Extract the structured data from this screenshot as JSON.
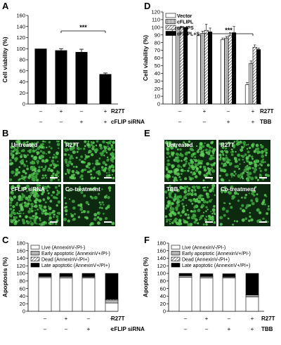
{
  "panels": {
    "A": "A",
    "B": "B",
    "C": "C",
    "D": "D",
    "E": "E",
    "F": "F"
  },
  "colors": {
    "bar": "#000000",
    "micro_bg": "#0d2a10",
    "cell": "#5fd05a",
    "alive": "#ffffff",
    "early": "#b5b5b5",
    "late": "#000000"
  },
  "chart_data": [
    {
      "panel": "A",
      "type": "bar",
      "ylabel": "Cell viability (%)",
      "ylim": [
        0,
        160
      ],
      "yticks": [
        0,
        20,
        40,
        60,
        80,
        100,
        120,
        140,
        160
      ],
      "values": [
        100,
        97,
        94,
        54
      ],
      "errors": [
        0,
        3,
        5,
        2
      ],
      "conditions": [
        {
          "label": "R27T",
          "marks": [
            "–",
            "+",
            "–",
            "+"
          ]
        },
        {
          "label": "cFLIP siRNA",
          "marks": [
            "–",
            "–",
            "+",
            "+"
          ]
        }
      ],
      "significance": "***"
    },
    {
      "panel": "D",
      "type": "bar",
      "ylabel": "Cell viability (%)",
      "ylim": [
        0,
        120
      ],
      "yticks": [
        0,
        10,
        20,
        30,
        40,
        50,
        60,
        70,
        80,
        90,
        100,
        110,
        120
      ],
      "legend": [
        "Vector",
        "cFLIPL",
        "cFLIPS",
        "cFLIPL+S"
      ],
      "series": [
        {
          "name": "Vector",
          "values": [
            100,
            89,
            84,
            25
          ],
          "errors": [
            0,
            2,
            2,
            3
          ]
        },
        {
          "name": "cFLIPL",
          "values": [
            100,
            92,
            86,
            53
          ],
          "errors": [
            0,
            3,
            2,
            3
          ]
        },
        {
          "name": "cFLIPS",
          "values": [
            100,
            96,
            89,
            74
          ],
          "errors": [
            0,
            8,
            4,
            3
          ]
        },
        {
          "name": "cFLIPL+S",
          "values": [
            100,
            94,
            93,
            71
          ],
          "errors": [
            0,
            5,
            8,
            2
          ]
        }
      ],
      "conditions": [
        {
          "label": "R27T",
          "marks": [
            "–",
            "+",
            "–",
            "+"
          ]
        },
        {
          "label": "TBB",
          "marks": [
            "–",
            "–",
            "+",
            "+"
          ]
        }
      ],
      "significance": "***"
    },
    {
      "panel": "C",
      "type": "bar",
      "ylabel": "Apoptosis (%)",
      "ylim": [
        0,
        180
      ],
      "yticks": [
        0,
        20,
        40,
        60,
        80,
        100,
        120,
        140,
        160,
        180
      ],
      "legend": [
        "Live (AnnexinV-/PI-)",
        "Early apoptotic (AnnexinV+/PI-)",
        "Dead (AnnexinV-/PI+)",
        "Late apoptotic (AnnexinV+/PI+)"
      ],
      "series": [
        {
          "name": "Live (AnnexinV-/PI-)",
          "values": [
            89,
            88,
            88,
            22
          ]
        },
        {
          "name": "Early apoptotic (AnnexinV+/PI-)",
          "values": [
            3,
            4,
            3,
            8
          ]
        },
        {
          "name": "Dead (AnnexinV-/PI+)",
          "values": [
            1,
            1,
            1,
            2
          ]
        },
        {
          "name": "Late apoptotic (AnnexinV+/PI+)",
          "values": [
            7,
            7,
            8,
            68
          ]
        }
      ],
      "conditions": [
        {
          "label": "R27T",
          "marks": [
            "–",
            "+",
            "–",
            "+"
          ]
        },
        {
          "label": "cFLIP siRNA",
          "marks": [
            "–",
            "–",
            "+",
            "+"
          ]
        }
      ]
    },
    {
      "panel": "F",
      "type": "bar",
      "ylabel": "Apoptosis (%)",
      "ylim": [
        0,
        180
      ],
      "yticks": [
        0,
        20,
        40,
        60,
        80,
        100,
        120,
        140,
        160,
        180
      ],
      "legend": [
        "Live (AnnexinV-/PI-)",
        "Early apoptotic (AnnexinV+/PI-)",
        "Dead (AnnexinV-/PI+)",
        "Late apoptotic (AnnexinV+/PI+)"
      ],
      "series": [
        {
          "name": "Live (AnnexinV-/PI-)",
          "values": [
            90,
            88,
            88,
            38
          ]
        },
        {
          "name": "Early apoptotic (AnnexinV+/PI-)",
          "values": [
            4,
            4,
            3,
            5
          ]
        },
        {
          "name": "Dead (AnnexinV-/PI+)",
          "values": [
            1,
            1,
            1,
            1
          ]
        },
        {
          "name": "Late apoptotic (AnnexinV+/PI+)",
          "values": [
            5,
            6,
            7,
            56
          ]
        }
      ],
      "conditions": [
        {
          "label": "R27T",
          "marks": [
            "–",
            "+",
            "–",
            "+"
          ]
        },
        {
          "label": "TBB",
          "marks": [
            "–",
            "–",
            "+",
            "+"
          ]
        }
      ]
    }
  ],
  "micrographs": {
    "B": [
      "Untreated",
      "R27T",
      "cFLIP siRNA",
      "Co-treatment"
    ],
    "E": [
      "Untreated",
      "R27T",
      "TBB",
      "Co-treatment"
    ]
  }
}
